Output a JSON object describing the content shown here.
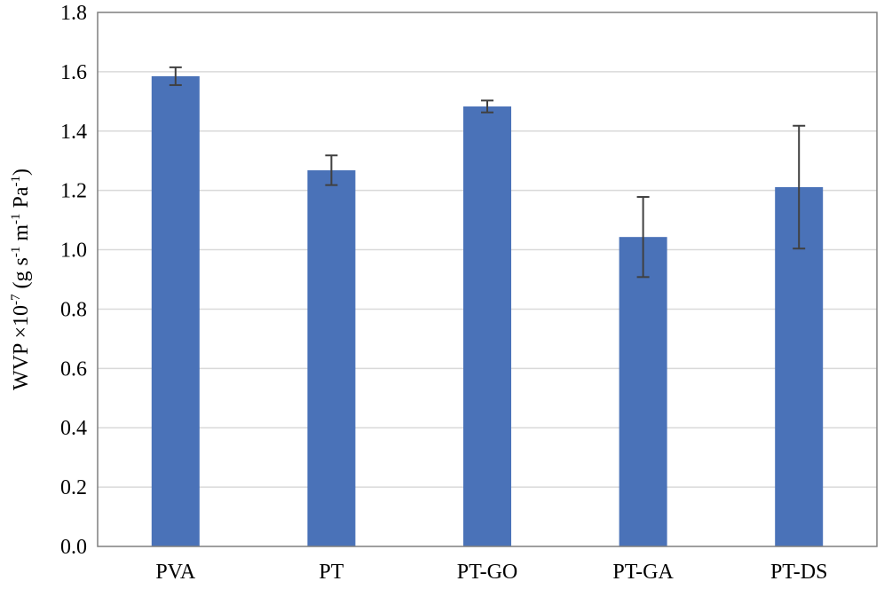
{
  "chart_data": {
    "type": "bar",
    "categories": [
      "PVA",
      "PT",
      "PT-GO",
      "PT-GA",
      "PT-DS"
    ],
    "series": [
      {
        "values": [
          1.585,
          1.268,
          1.483,
          1.043,
          1.211
        ],
        "errors": [
          0.03,
          0.05,
          0.02,
          0.135,
          0.207
        ],
        "color": "#4a72b8"
      }
    ],
    "ylim": [
      0,
      1.8
    ],
    "yticks": [
      "0.0",
      "0.2",
      "0.4",
      "0.6",
      "0.8",
      "1.0",
      "1.2",
      "1.4",
      "1.6",
      "1.8"
    ],
    "ylabel": {
      "main": "WVP ×10",
      "exp": "-7",
      "unit_open": " (g s",
      "unit_s_exp": "-1",
      "unit_m": " m",
      "unit_m_exp": "-1",
      "unit_pa": " Pa",
      "unit_pa_exp": "-1",
      "unit_close": ")"
    },
    "xlabel": "",
    "grid": true
  }
}
